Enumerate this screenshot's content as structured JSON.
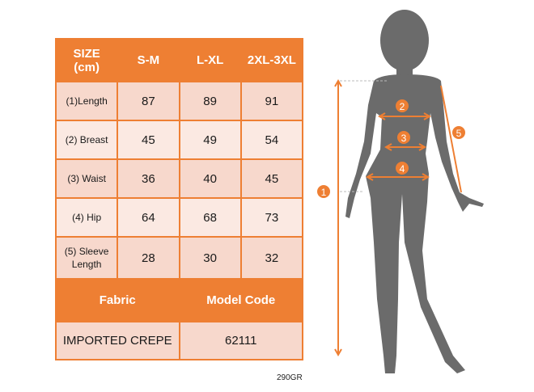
{
  "table": {
    "header": [
      "SIZE\n(cm)",
      "S-M",
      "L-XL",
      "2XL-3XL"
    ],
    "header_line1": "SIZE",
    "header_line2": "(cm)",
    "rows": [
      {
        "label": "(1)Length",
        "values": [
          "87",
          "89",
          "91"
        ]
      },
      {
        "label": "(2) Breast",
        "values": [
          "45",
          "49",
          "54"
        ]
      },
      {
        "label": "(3) Waist",
        "values": [
          "36",
          "40",
          "45"
        ]
      },
      {
        "label": "(4) Hip",
        "values": [
          "64",
          "68",
          "73"
        ]
      },
      {
        "label_line1": "(5) Sleeve",
        "label_line2": "Length",
        "values": [
          "28",
          "30",
          "32"
        ]
      }
    ],
    "fabric_header": "Fabric",
    "model_code_header": "Model Code",
    "fabric_value": "IMPORTED CREPE",
    "model_code_value": "62111"
  },
  "weight_code": "290GR",
  "figure": {
    "markers": [
      "1",
      "2",
      "3",
      "4",
      "5"
    ],
    "silhouette_color": "#6b6b6b",
    "accent_color": "#ee7f33"
  }
}
